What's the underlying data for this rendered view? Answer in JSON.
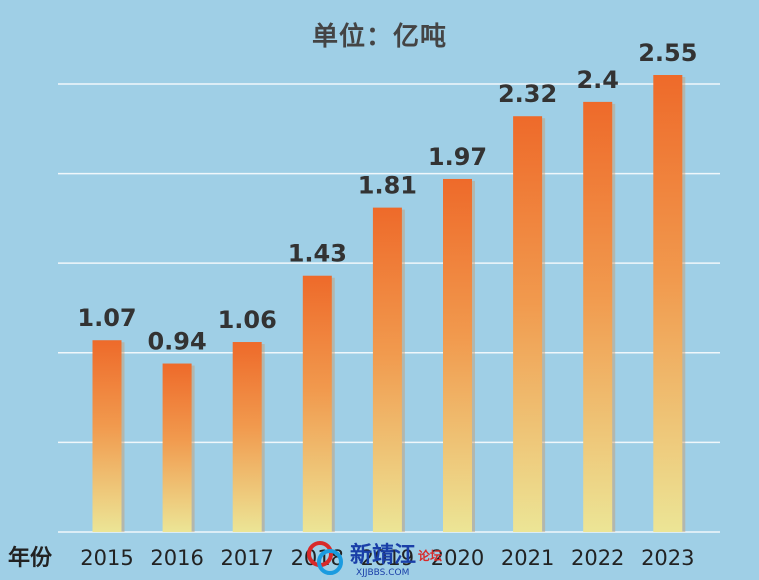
{
  "chart_data": {
    "type": "bar",
    "title": "单位：亿吨",
    "xlabel": "年份",
    "ylabel": "",
    "categories": [
      "2015",
      "2016",
      "2017",
      "2018",
      "2019",
      "2020",
      "2021",
      "2022",
      "2023"
    ],
    "values": [
      1.07,
      0.94,
      1.06,
      1.43,
      1.81,
      1.97,
      2.32,
      2.4,
      2.55
    ],
    "value_labels": [
      "1.07",
      "0.94",
      "1.06",
      "1.43",
      "1.81",
      "1.97",
      "2.32",
      "2.4",
      "2.55"
    ],
    "ylim": [
      0,
      2.6
    ],
    "grid": true,
    "colors": {
      "bar_top": "#ee6a2a",
      "bar_bottom": "#ece596",
      "background": "#9fcfe6",
      "grid": "#ffffff",
      "label": "#333333"
    }
  },
  "watermark": {
    "main": "新靖江",
    "side": "论坛",
    "sub": "XJJBBS.COM"
  }
}
